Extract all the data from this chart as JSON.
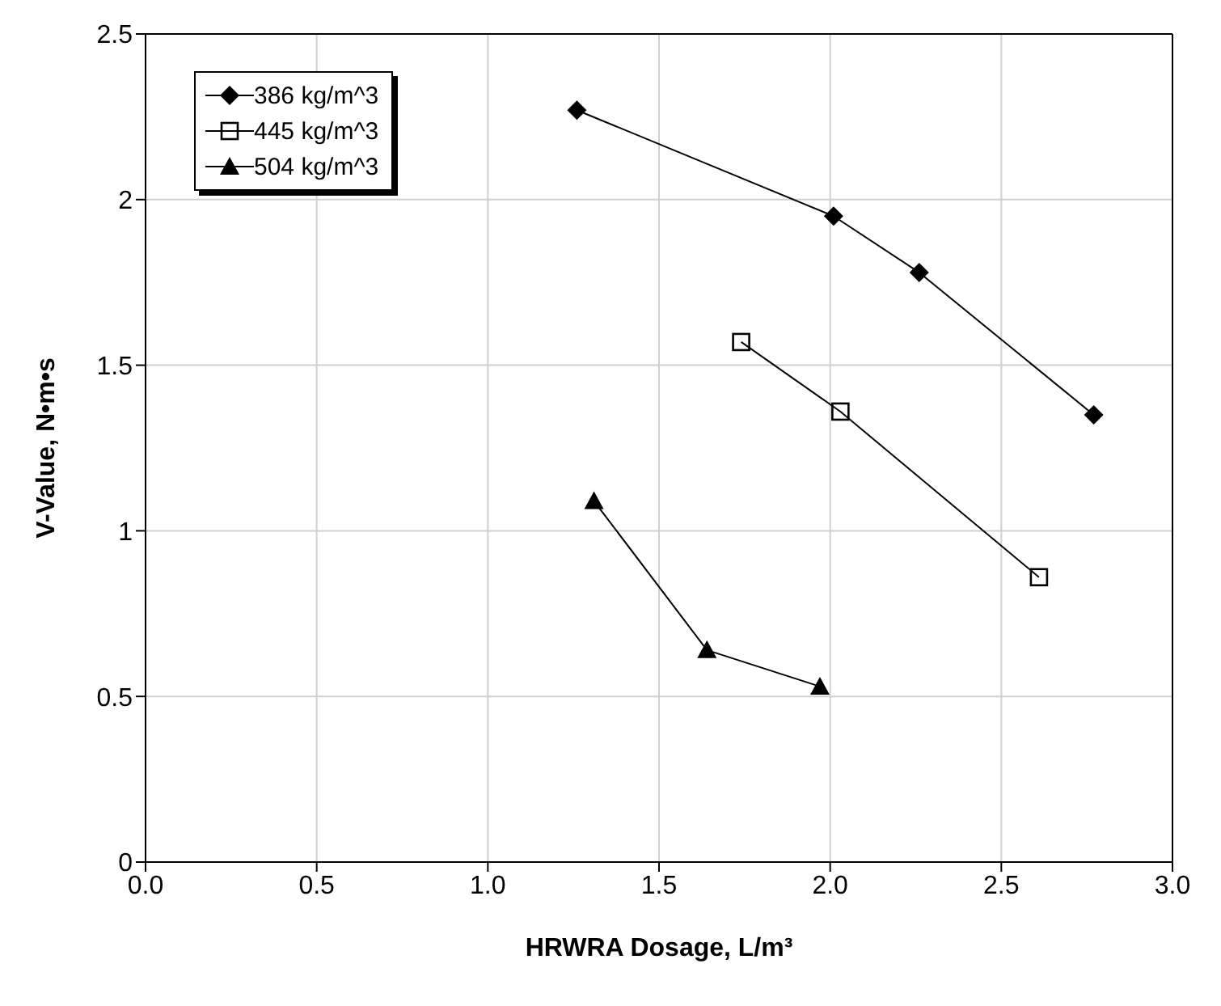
{
  "chart_data": {
    "type": "line",
    "xlabel": "HRWRA Dosage, L/m³",
    "ylabel": "V-Value, N•m•s",
    "xlim": [
      0,
      3
    ],
    "xticks": [
      {
        "value": 0,
        "label": "0.0"
      },
      {
        "value": 0.5,
        "label": "0.5"
      },
      {
        "value": 1,
        "label": "1.0"
      },
      {
        "value": 1.5,
        "label": "1.5"
      },
      {
        "value": 2,
        "label": "2.0"
      },
      {
        "value": 2.5,
        "label": "2.5"
      },
      {
        "value": 3,
        "label": "3.0"
      }
    ],
    "ylim": [
      0,
      2.5
    ],
    "yticks": [
      0,
      0.5,
      1,
      1.5,
      2,
      2.5
    ],
    "grid": true,
    "legend": "top left",
    "line_style": "solid",
    "series": [
      {
        "name": "386 kg/m^3",
        "color": "#000000",
        "marker": "diamond",
        "x": [
          1.26,
          2.01,
          2.26,
          2.77
        ],
        "values": [
          2.27,
          1.95,
          1.78,
          1.35
        ]
      },
      {
        "name": "445 kg/m^3",
        "color": "#000000",
        "marker": "square",
        "x": [
          1.74,
          2.03,
          2.61
        ],
        "values": [
          1.57,
          1.36,
          0.86
        ]
      },
      {
        "name": "504 kg/m^3",
        "color": "#000000",
        "marker": "triangle",
        "x": [
          1.31,
          1.64,
          1.97
        ],
        "values": [
          1.09,
          0.64,
          0.53
        ]
      }
    ]
  }
}
